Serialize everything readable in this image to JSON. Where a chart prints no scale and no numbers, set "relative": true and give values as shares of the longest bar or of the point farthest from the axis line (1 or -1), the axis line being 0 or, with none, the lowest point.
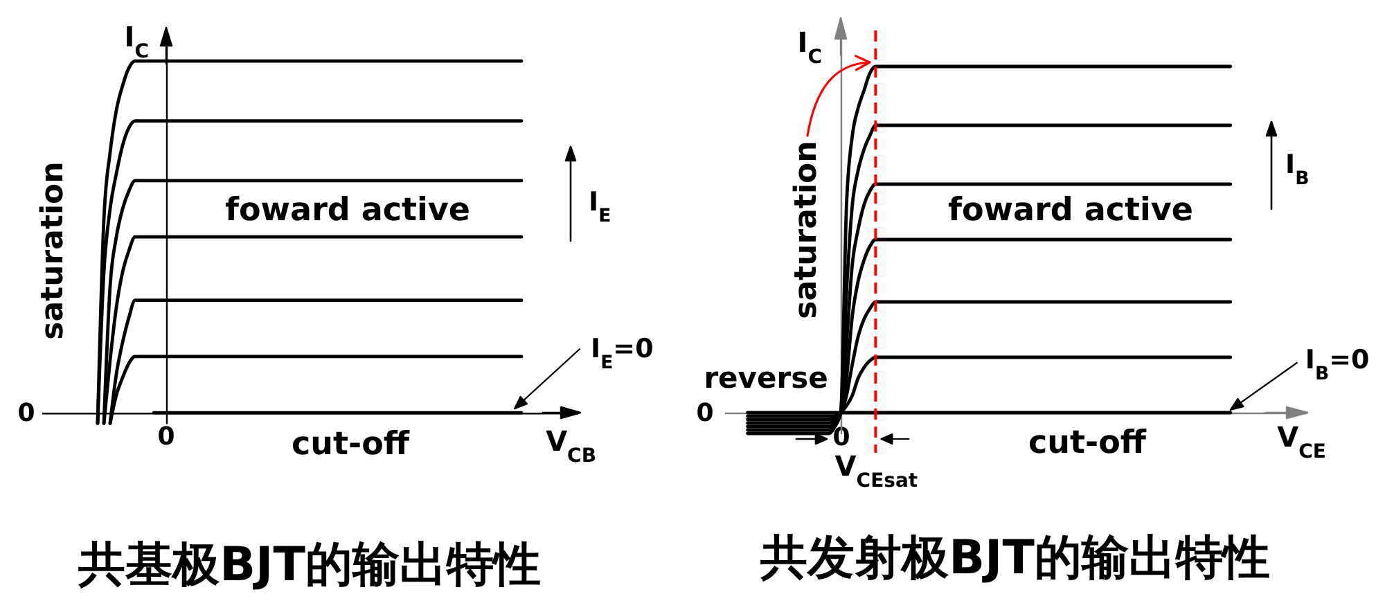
{
  "chart_data": [
    {
      "type": "line",
      "title": "共基极BJT的输出特性",
      "xlabel": "V$_{CB}$",
      "ylabel": "I$_{C}$",
      "relative": true,
      "categories": [
        null,
        null,
        null,
        null,
        null,
        null,
        null,
        null,
        null,
        null,
        null,
        null,
        null,
        null,
        null,
        null,
        null,
        null,
        null,
        null,
        null,
        null,
        null,
        null,
        null,
        null,
        null,
        null,
        null,
        null,
        null,
        null,
        null,
        null,
        null,
        null,
        null,
        null,
        null,
        null,
        null,
        null,
        null,
        null,
        null,
        null,
        null,
        null,
        null,
        null,
        null,
        null,
        null,
        null,
        null,
        null,
        null,
        null,
        null,
        null,
        null,
        null,
        null,
        null,
        null,
        null,
        null,
        null,
        null,
        null,
        null,
        null,
        null,
        null,
        null,
        null,
        null,
        null,
        null,
        null,
        null,
        null,
        null,
        null,
        null,
        null,
        null
      ],
      "series": [
        {
          "color": "#000000",
          "values": [
            null,
            null,
            null,
            null,
            null,
            null,
            null,
            null,
            null,
            -0.03,
            0.55,
            0.74,
            0.86,
            0.93,
            0.98,
            1,
            1,
            1,
            1,
            1,
            1,
            1,
            1,
            1,
            1,
            1,
            1,
            1,
            1,
            1,
            1,
            1,
            1,
            1,
            1,
            1,
            1,
            1,
            1,
            1,
            1,
            1,
            1,
            1,
            1,
            1,
            1,
            1,
            1,
            1,
            1,
            1,
            1,
            1,
            1,
            1,
            1,
            1,
            1,
            1,
            1,
            1,
            1,
            1,
            1,
            1,
            1,
            1,
            1,
            1,
            1,
            1,
            1,
            1,
            1,
            1,
            1,
            1,
            null,
            null,
            null,
            null,
            null,
            null,
            null,
            null,
            null
          ]
        },
        {
          "color": "#000000",
          "values": [
            null,
            null,
            null,
            null,
            null,
            null,
            null,
            null,
            null,
            -0.03,
            0.4,
            0.58,
            0.68,
            0.76,
            0.81,
            0.83,
            0.83,
            0.83,
            0.83,
            0.83,
            0.83,
            0.83,
            0.83,
            0.83,
            0.83,
            0.83,
            0.83,
            0.83,
            0.83,
            0.83,
            0.83,
            0.83,
            0.83,
            0.83,
            0.83,
            0.83,
            0.83,
            0.83,
            0.83,
            0.83,
            0.83,
            0.83,
            0.83,
            0.83,
            0.83,
            0.83,
            0.83,
            0.83,
            0.83,
            0.83,
            0.83,
            0.83,
            0.83,
            0.83,
            0.83,
            0.83,
            0.83,
            0.83,
            0.83,
            0.83,
            0.83,
            0.83,
            0.83,
            0.83,
            0.83,
            0.83,
            0.83,
            0.83,
            0.83,
            0.83,
            0.83,
            0.83,
            0.83,
            0.83,
            0.83,
            0.83,
            0.83,
            0.83,
            null,
            null,
            null,
            null,
            null,
            null,
            null,
            null,
            null
          ]
        },
        {
          "color": "#000000",
          "values": [
            null,
            null,
            null,
            null,
            null,
            null,
            null,
            null,
            null,
            null,
            -0.03,
            0.36,
            0.5,
            0.58,
            0.63,
            0.66,
            0.66,
            0.66,
            0.66,
            0.66,
            0.66,
            0.66,
            0.66,
            0.66,
            0.66,
            0.66,
            0.66,
            0.66,
            0.66,
            0.66,
            0.66,
            0.66,
            0.66,
            0.66,
            0.66,
            0.66,
            0.66,
            0.66,
            0.66,
            0.66,
            0.66,
            0.66,
            0.66,
            0.66,
            0.66,
            0.66,
            0.66,
            0.66,
            0.66,
            0.66,
            0.66,
            0.66,
            0.66,
            0.66,
            0.66,
            0.66,
            0.66,
            0.66,
            0.66,
            0.66,
            0.66,
            0.66,
            0.66,
            0.66,
            0.66,
            0.66,
            0.66,
            0.66,
            0.66,
            0.66,
            0.66,
            0.66,
            0.66,
            0.66,
            0.66,
            0.66,
            0.66,
            0.66,
            null,
            null,
            null,
            null,
            null,
            null,
            null,
            null,
            null
          ]
        },
        {
          "color": "#000000",
          "values": [
            null,
            null,
            null,
            null,
            null,
            null,
            null,
            null,
            null,
            null,
            -0.03,
            0.15,
            0.3,
            0.4,
            0.46,
            0.5,
            0.5,
            0.5,
            0.5,
            0.5,
            0.5,
            0.5,
            0.5,
            0.5,
            0.5,
            0.5,
            0.5,
            0.5,
            0.5,
            0.5,
            0.5,
            0.5,
            0.5,
            0.5,
            0.5,
            0.5,
            0.5,
            0.5,
            0.5,
            0.5,
            0.5,
            0.5,
            0.5,
            0.5,
            0.5,
            0.5,
            0.5,
            0.5,
            0.5,
            0.5,
            0.5,
            0.5,
            0.5,
            0.5,
            0.5,
            0.5,
            0.5,
            0.5,
            0.5,
            0.5,
            0.5,
            0.5,
            0.5,
            0.5,
            0.5,
            0.5,
            0.5,
            0.5,
            0.5,
            0.5,
            0.5,
            0.5,
            0.5,
            0.5,
            0.5,
            0.5,
            0.5,
            0.5,
            null,
            null,
            null,
            null,
            null,
            null,
            null,
            null,
            null
          ]
        },
        {
          "color": "#000000",
          "values": [
            null,
            null,
            null,
            null,
            null,
            null,
            null,
            null,
            null,
            null,
            null,
            -0.03,
            0.11,
            0.2,
            0.27,
            0.32,
            0.32,
            0.32,
            0.32,
            0.32,
            0.32,
            0.32,
            0.32,
            0.32,
            0.32,
            0.32,
            0.32,
            0.32,
            0.32,
            0.32,
            0.32,
            0.32,
            0.32,
            0.32,
            0.32,
            0.32,
            0.32,
            0.32,
            0.32,
            0.32,
            0.32,
            0.32,
            0.32,
            0.32,
            0.32,
            0.32,
            0.32,
            0.32,
            0.32,
            0.32,
            0.32,
            0.32,
            0.32,
            0.32,
            0.32,
            0.32,
            0.32,
            0.32,
            0.32,
            0.32,
            0.32,
            0.32,
            0.32,
            0.32,
            0.32,
            0.32,
            0.32,
            0.32,
            0.32,
            0.32,
            0.32,
            0.32,
            0.32,
            0.32,
            0.32,
            0.32,
            0.32,
            0.32,
            null,
            null,
            null,
            null,
            null,
            null,
            null,
            null,
            null
          ]
        },
        {
          "color": "#000000",
          "values": [
            null,
            null,
            null,
            null,
            null,
            null,
            null,
            null,
            null,
            null,
            null,
            -0.03,
            0.05,
            0.1,
            0.14,
            0.16,
            0.16,
            0.16,
            0.16,
            0.16,
            0.16,
            0.16,
            0.16,
            0.16,
            0.16,
            0.16,
            0.16,
            0.16,
            0.16,
            0.16,
            0.16,
            0.16,
            0.16,
            0.16,
            0.16,
            0.16,
            0.16,
            0.16,
            0.16,
            0.16,
            0.16,
            0.16,
            0.16,
            0.16,
            0.16,
            0.16,
            0.16,
            0.16,
            0.16,
            0.16,
            0.16,
            0.16,
            0.16,
            0.16,
            0.16,
            0.16,
            0.16,
            0.16,
            0.16,
            0.16,
            0.16,
            0.16,
            0.16,
            0.16,
            0.16,
            0.16,
            0.16,
            0.16,
            0.16,
            0.16,
            0.16,
            0.16,
            0.16,
            0.16,
            0.16,
            0.16,
            0.16,
            0.16,
            null,
            null,
            null,
            null,
            null,
            null,
            null,
            null,
            null
          ]
        },
        {
          "name": "I$_{E}$=0",
          "color": "#000000",
          "values": [
            null,
            null,
            null,
            null,
            null,
            null,
            null,
            null,
            null,
            null,
            null,
            null,
            null,
            null,
            null,
            null,
            null,
            null,
            0,
            0,
            0,
            0,
            0,
            0,
            0,
            0,
            0,
            0,
            0,
            0,
            0,
            0,
            0,
            0,
            0,
            0,
            0,
            0,
            0,
            0,
            0,
            0,
            0,
            0,
            0,
            0,
            0,
            0,
            0,
            0,
            0,
            0,
            0,
            0,
            0,
            0,
            0,
            0,
            0,
            0,
            0,
            0,
            0,
            0,
            0,
            0,
            0,
            0,
            0,
            0,
            0,
            0,
            0,
            0,
            0,
            0,
            0,
            0,
            null,
            null,
            null,
            null,
            null,
            null,
            null,
            null,
            null
          ]
        }
      ],
      "annotations": [
        "saturation",
        "foward active",
        "cut-off",
        "0",
        "0",
        "I$_{E}$"
      ]
    },
    {
      "type": "line",
      "title": "共发射极BJT的输出特性",
      "xlabel": "V$_{CE}$",
      "ylabel": "I$_{C}$",
      "relative": true,
      "categories": [
        null,
        null,
        null,
        null,
        null,
        null,
        null,
        null,
        null,
        null,
        null,
        null,
        null,
        null,
        null,
        null,
        null,
        null,
        null,
        null,
        "0",
        null,
        null,
        null,
        null,
        null,
        "V$_{CEsat}$",
        null,
        null,
        null,
        null,
        null,
        null,
        null,
        null,
        null,
        null,
        null,
        null,
        null,
        null,
        null,
        null,
        null,
        null,
        null,
        null,
        null,
        null,
        null,
        null,
        null,
        null,
        null,
        null,
        null,
        null,
        null,
        null,
        null,
        null,
        null,
        null,
        null,
        null,
        null,
        null,
        null,
        null,
        null,
        null,
        null,
        null,
        null,
        null,
        null,
        null,
        null,
        null,
        null,
        null,
        null,
        null,
        null,
        null,
        null,
        null,
        null,
        null,
        null,
        null,
        null,
        null,
        null,
        null,
        null,
        null,
        null,
        null,
        null,
        null
      ],
      "series": [
        {
          "color": "#000000",
          "values": [
            null,
            null,
            null,
            null,
            -0.06,
            -0.06,
            -0.06,
            -0.06,
            -0.06,
            -0.06,
            -0.06,
            -0.06,
            -0.06,
            -0.06,
            -0.06,
            -0.06,
            -0.06,
            -0.06,
            -0.06,
            -0.04,
            0,
            0.6,
            0.8,
            0.88,
            0.93,
            0.98,
            1,
            1,
            1,
            1,
            1,
            1,
            1,
            1,
            1,
            1,
            1,
            1,
            1,
            1,
            1,
            1,
            1,
            1,
            1,
            1,
            1,
            1,
            1,
            1,
            1,
            1,
            1,
            1,
            1,
            1,
            1,
            1,
            1,
            1,
            1,
            1,
            1,
            1,
            1,
            1,
            1,
            1,
            1,
            1,
            1,
            1,
            1,
            1,
            1,
            1,
            1,
            1,
            1,
            1,
            1,
            1,
            1,
            1,
            1,
            1,
            1,
            1,
            null,
            null,
            null,
            null,
            null,
            null,
            null,
            null,
            null,
            null,
            null,
            null,
            null
          ]
        },
        {
          "color": "#000000",
          "values": [
            null,
            null,
            null,
            null,
            -0.05,
            -0.05,
            -0.05,
            -0.05,
            -0.05,
            -0.05,
            -0.05,
            -0.05,
            -0.05,
            -0.05,
            -0.05,
            -0.05,
            -0.05,
            -0.05,
            -0.05,
            -0.03,
            0,
            0.35,
            0.6,
            0.7,
            0.76,
            0.8,
            0.83,
            0.83,
            0.83,
            0.83,
            0.83,
            0.83,
            0.83,
            0.83,
            0.83,
            0.83,
            0.83,
            0.83,
            0.83,
            0.83,
            0.83,
            0.83,
            0.83,
            0.83,
            0.83,
            0.83,
            0.83,
            0.83,
            0.83,
            0.83,
            0.83,
            0.83,
            0.83,
            0.83,
            0.83,
            0.83,
            0.83,
            0.83,
            0.83,
            0.83,
            0.83,
            0.83,
            0.83,
            0.83,
            0.83,
            0.83,
            0.83,
            0.83,
            0.83,
            0.83,
            0.83,
            0.83,
            0.83,
            0.83,
            0.83,
            0.83,
            0.83,
            0.83,
            0.83,
            0.83,
            0.83,
            0.83,
            0.83,
            0.83,
            0.83,
            0.83,
            0.83,
            0.83,
            null,
            null,
            null,
            null,
            null,
            null,
            null,
            null,
            null,
            null,
            null,
            null,
            null
          ]
        },
        {
          "color": "#000000",
          "values": [
            null,
            null,
            null,
            null,
            -0.04,
            -0.04,
            -0.04,
            -0.04,
            -0.04,
            -0.04,
            -0.04,
            -0.04,
            -0.04,
            -0.04,
            -0.04,
            -0.04,
            -0.04,
            -0.04,
            -0.04,
            -0.03,
            0,
            0.2,
            0.43,
            0.53,
            0.6,
            0.64,
            0.66,
            0.66,
            0.66,
            0.66,
            0.66,
            0.66,
            0.66,
            0.66,
            0.66,
            0.66,
            0.66,
            0.66,
            0.66,
            0.66,
            0.66,
            0.66,
            0.66,
            0.66,
            0.66,
            0.66,
            0.66,
            0.66,
            0.66,
            0.66,
            0.66,
            0.66,
            0.66,
            0.66,
            0.66,
            0.66,
            0.66,
            0.66,
            0.66,
            0.66,
            0.66,
            0.66,
            0.66,
            0.66,
            0.66,
            0.66,
            0.66,
            0.66,
            0.66,
            0.66,
            0.66,
            0.66,
            0.66,
            0.66,
            0.66,
            0.66,
            0.66,
            0.66,
            0.66,
            0.66,
            0.66,
            0.66,
            0.66,
            0.66,
            0.66,
            0.66,
            0.66,
            0.66,
            null,
            null,
            null,
            null,
            null,
            null,
            null,
            null,
            null,
            null,
            null,
            null,
            null
          ]
        },
        {
          "color": "#000000",
          "values": [
            null,
            null,
            null,
            null,
            -0.03,
            -0.03,
            -0.03,
            -0.03,
            -0.03,
            -0.03,
            -0.03,
            -0.03,
            -0.03,
            -0.03,
            -0.03,
            -0.03,
            -0.03,
            -0.03,
            -0.03,
            -0.02,
            0,
            0.1,
            0.28,
            0.38,
            0.44,
            0.48,
            0.5,
            0.5,
            0.5,
            0.5,
            0.5,
            0.5,
            0.5,
            0.5,
            0.5,
            0.5,
            0.5,
            0.5,
            0.5,
            0.5,
            0.5,
            0.5,
            0.5,
            0.5,
            0.5,
            0.5,
            0.5,
            0.5,
            0.5,
            0.5,
            0.5,
            0.5,
            0.5,
            0.5,
            0.5,
            0.5,
            0.5,
            0.5,
            0.5,
            0.5,
            0.5,
            0.5,
            0.5,
            0.5,
            0.5,
            0.5,
            0.5,
            0.5,
            0.5,
            0.5,
            0.5,
            0.5,
            0.5,
            0.5,
            0.5,
            0.5,
            0.5,
            0.5,
            0.5,
            0.5,
            0.5,
            0.5,
            0.5,
            0.5,
            0.5,
            0.5,
            0.5,
            0.5,
            null,
            null,
            null,
            null,
            null,
            null,
            null,
            null,
            null,
            null,
            null,
            null,
            null
          ]
        },
        {
          "color": "#000000",
          "values": [
            null,
            null,
            null,
            null,
            -0.02,
            -0.02,
            -0.02,
            -0.02,
            -0.02,
            -0.02,
            -0.02,
            -0.02,
            -0.02,
            -0.02,
            -0.02,
            -0.02,
            -0.02,
            -0.02,
            -0.02,
            -0.01,
            0,
            0.05,
            0.14,
            0.22,
            0.27,
            0.3,
            0.32,
            0.32,
            0.32,
            0.32,
            0.32,
            0.32,
            0.32,
            0.32,
            0.32,
            0.32,
            0.32,
            0.32,
            0.32,
            0.32,
            0.32,
            0.32,
            0.32,
            0.32,
            0.32,
            0.32,
            0.32,
            0.32,
            0.32,
            0.32,
            0.32,
            0.32,
            0.32,
            0.32,
            0.32,
            0.32,
            0.32,
            0.32,
            0.32,
            0.32,
            0.32,
            0.32,
            0.32,
            0.32,
            0.32,
            0.32,
            0.32,
            0.32,
            0.32,
            0.32,
            0.32,
            0.32,
            0.32,
            0.32,
            0.32,
            0.32,
            0.32,
            0.32,
            0.32,
            0.32,
            0.32,
            0.32,
            0.32,
            0.32,
            0.32,
            0.32,
            0.32,
            0.32,
            null,
            null,
            null,
            null,
            null,
            null,
            null,
            null,
            null,
            null,
            null,
            null,
            null
          ]
        },
        {
          "color": "#000000",
          "values": [
            null,
            null,
            null,
            null,
            -0.01,
            -0.01,
            -0.01,
            -0.01,
            -0.01,
            -0.01,
            -0.01,
            -0.01,
            -0.01,
            -0.01,
            -0.01,
            -0.01,
            -0.01,
            -0.01,
            -0.01,
            -0.01,
            0,
            0.02,
            0.05,
            0.1,
            0.13,
            0.15,
            0.16,
            0.16,
            0.16,
            0.16,
            0.16,
            0.16,
            0.16,
            0.16,
            0.16,
            0.16,
            0.16,
            0.16,
            0.16,
            0.16,
            0.16,
            0.16,
            0.16,
            0.16,
            0.16,
            0.16,
            0.16,
            0.16,
            0.16,
            0.16,
            0.16,
            0.16,
            0.16,
            0.16,
            0.16,
            0.16,
            0.16,
            0.16,
            0.16,
            0.16,
            0.16,
            0.16,
            0.16,
            0.16,
            0.16,
            0.16,
            0.16,
            0.16,
            0.16,
            0.16,
            0.16,
            0.16,
            0.16,
            0.16,
            0.16,
            0.16,
            0.16,
            0.16,
            0.16,
            0.16,
            0.16,
            0.16,
            0.16,
            0.16,
            0.16,
            0.16,
            0.16,
            0.16,
            null,
            null,
            null,
            null,
            null,
            null,
            null,
            null,
            null,
            null,
            null,
            null,
            null
          ]
        },
        {
          "name": "I$_{B}$=0",
          "color": "#000000",
          "values": [
            null,
            null,
            null,
            null,
            0,
            0,
            0,
            0,
            0,
            0,
            0,
            0,
            0,
            0,
            0,
            0,
            0,
            0,
            0,
            0,
            0,
            0,
            0,
            0,
            0,
            0,
            0,
            0,
            0,
            0,
            0,
            0,
            0,
            0,
            0,
            0,
            0,
            0,
            0,
            0,
            0,
            0,
            0,
            0,
            0,
            0,
            0,
            0,
            0,
            0,
            0,
            0,
            0,
            0,
            0,
            0,
            0,
            0,
            0,
            0,
            0,
            0,
            0,
            0,
            0,
            0,
            0,
            0,
            0,
            0,
            0,
            0,
            0,
            0,
            0,
            0,
            0,
            0,
            0,
            0,
            0,
            0,
            0,
            0,
            0,
            0,
            0,
            0,
            null,
            null,
            null,
            null,
            null,
            null,
            null,
            null,
            null,
            null,
            null,
            null,
            null
          ]
        }
      ],
      "ref_lines": [
        {
          "axis": "x",
          "value": "V$_{CEsat}$",
          "color": "#ff0000",
          "line_style": "dashed"
        }
      ],
      "annotations": [
        "saturation",
        "foward active",
        "cut-off",
        "reverse",
        "0",
        "I$_{B}$"
      ]
    }
  ]
}
